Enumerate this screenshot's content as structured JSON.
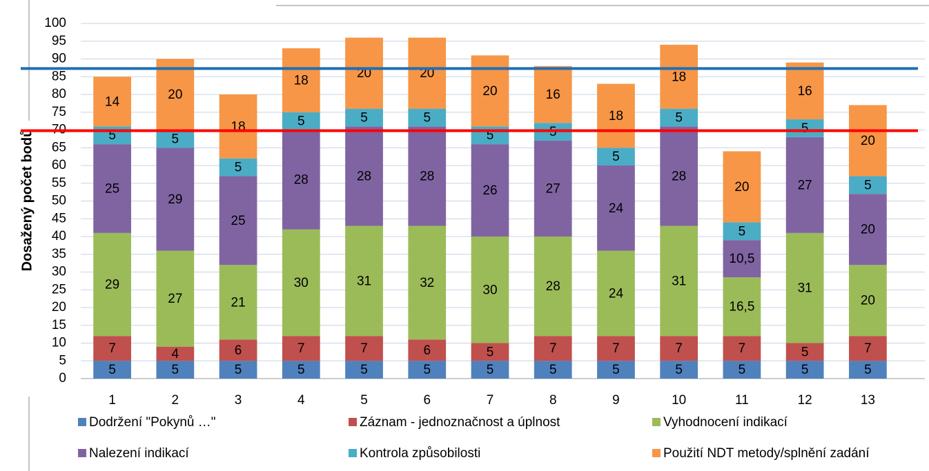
{
  "chart_data": {
    "type": "stacked_bar",
    "y_label": "Dosažený počet bodů",
    "categories": [
      "1",
      "2",
      "3",
      "4",
      "5",
      "6",
      "7",
      "8",
      "9",
      "10",
      "11",
      "12",
      "13"
    ],
    "series": [
      {
        "name": "Dodržení \"Pokynů …\"",
        "color": "#4f81bd",
        "values": [
          5,
          5,
          5,
          5,
          5,
          5,
          5,
          5,
          5,
          5,
          5,
          5,
          5
        ]
      },
      {
        "name": "Záznam - jednoznačnost a úplnost",
        "color": "#c0504d",
        "values": [
          7,
          4,
          6,
          7,
          7,
          6,
          5,
          7,
          7,
          7,
          7,
          5,
          7
        ]
      },
      {
        "name": "Vyhodnocení indikací",
        "color": "#9bbb59",
        "values": [
          29,
          27,
          21,
          30,
          31,
          32,
          30,
          28,
          24,
          31,
          16.5,
          31,
          20
        ],
        "value_labels": [
          "29",
          "27",
          "21",
          "30",
          "31",
          "32",
          "30",
          "28",
          "24",
          "31",
          "16,5",
          "31",
          "20"
        ]
      },
      {
        "name": "Nalezení indikací",
        "color": "#8064a2",
        "values": [
          25,
          29,
          25,
          28,
          28,
          28,
          26,
          27,
          24,
          28,
          10.5,
          27,
          20
        ],
        "value_labels": [
          "25",
          "29",
          "25",
          "28",
          "28",
          "28",
          "26",
          "27",
          "24",
          "28",
          "10,5",
          "27",
          "20"
        ]
      },
      {
        "name": "Kontrola způsobilosti",
        "color": "#4bacc6",
        "values": [
          5,
          5,
          5,
          5,
          5,
          5,
          5,
          5,
          5,
          5,
          5,
          5,
          5
        ]
      },
      {
        "name": "Použití NDT metody/splnění zadání",
        "color": "#f79646",
        "values": [
          14,
          20,
          18,
          18,
          20,
          20,
          20,
          16,
          18,
          18,
          20,
          16,
          20
        ]
      }
    ],
    "ylim": [
      0,
      100
    ],
    "yticks": [
      0,
      5,
      10,
      15,
      20,
      25,
      30,
      35,
      40,
      45,
      50,
      55,
      60,
      65,
      70,
      75,
      80,
      85,
      90,
      95,
      100
    ],
    "grid": true,
    "reference_lines": [
      {
        "value": 87.3,
        "color": "#1f6fb5"
      },
      {
        "value": 69.8,
        "color": "#ff0000"
      }
    ]
  }
}
